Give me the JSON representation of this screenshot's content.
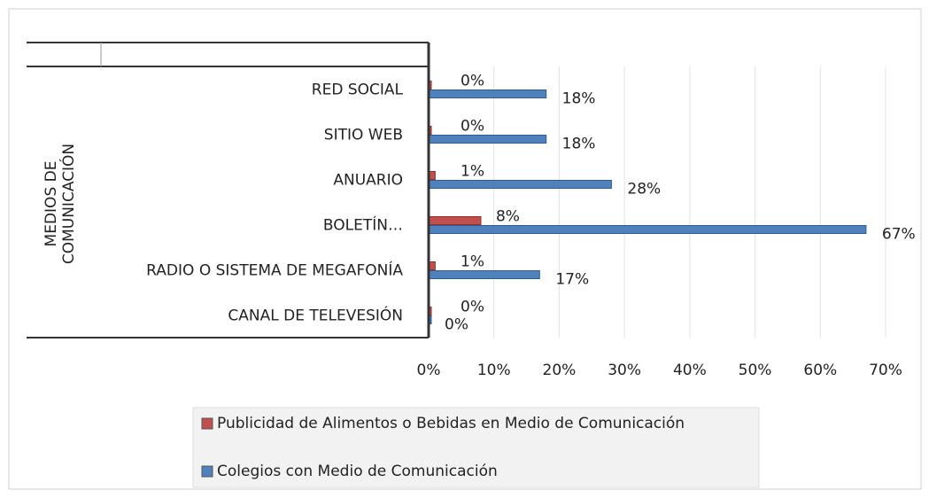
{
  "chart_data": {
    "type": "hbar",
    "y_label": [
      "MEDIOS DE",
      "COMUNICACIÓN"
    ],
    "categories": [
      "RED SOCIAL",
      "SITIO WEB",
      "ANUARIO",
      "BOLETÍN…",
      "RADIO O SISTEMA DE MEGAFONÍA",
      "CANAL DE TELEVESIÓN"
    ],
    "series": [
      {
        "name": "Publicidad de Alimentos o Bebidas en Medio de Comunicación",
        "color": "#c0504d",
        "values": [
          0,
          0,
          1,
          8,
          1,
          0
        ],
        "value_labels": [
          "0%",
          "0%",
          "1%",
          "8%",
          "1%",
          "0%"
        ]
      },
      {
        "name": "Colegios con Medio de Comunicación",
        "color": "#4f81bd",
        "values": [
          18,
          18,
          28,
          67,
          17,
          0
        ],
        "value_labels": [
          "18%",
          "18%",
          "28%",
          "67%",
          "17%",
          "0%"
        ]
      }
    ],
    "xlim": [
      0,
      70
    ],
    "xticks": [
      {
        "value": 0,
        "label": "0%"
      },
      {
        "value": 10,
        "label": "10%"
      },
      {
        "value": 20,
        "label": "20%"
      },
      {
        "value": 30,
        "label": "30%"
      },
      {
        "value": 40,
        "label": "40%"
      },
      {
        "value": 50,
        "label": "50%"
      },
      {
        "value": 60,
        "label": "60%"
      },
      {
        "value": 70,
        "label": "70%"
      }
    ],
    "grid": true
  }
}
